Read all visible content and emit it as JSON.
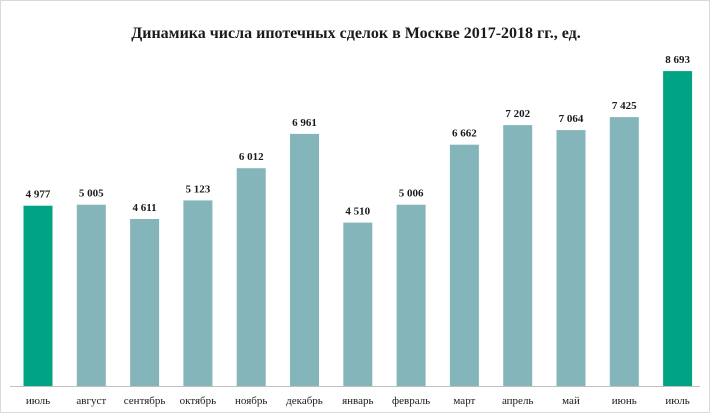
{
  "chart_data": {
    "type": "bar",
    "title": "Динамика числа ипотечных сделок в Москве 2017-2018 гг., ед.",
    "categories": [
      "июль",
      "август",
      "сентябрь",
      "октябрь",
      "ноябрь",
      "декабрь",
      "январь",
      "февраль",
      "март",
      "апрель",
      "май",
      "июнь",
      "июль"
    ],
    "values": [
      4977,
      5005,
      4611,
      5123,
      6012,
      6961,
      4510,
      5006,
      6662,
      7202,
      7064,
      7425,
      8693
    ],
    "value_labels": [
      "4 977",
      "5 005",
      "4 611",
      "5 123",
      "6 012",
      "6 961",
      "4 510",
      "5 006",
      "6 662",
      "7 202",
      "7 064",
      "7 425",
      "8 693"
    ],
    "highlighted": [
      true,
      false,
      false,
      false,
      false,
      false,
      false,
      false,
      false,
      false,
      false,
      false,
      true
    ],
    "colors": {
      "bar": "#84b5bb",
      "highlight": "#00a383"
    },
    "ylim": [
      0,
      9000
    ],
    "grid": false,
    "legend": "none"
  }
}
